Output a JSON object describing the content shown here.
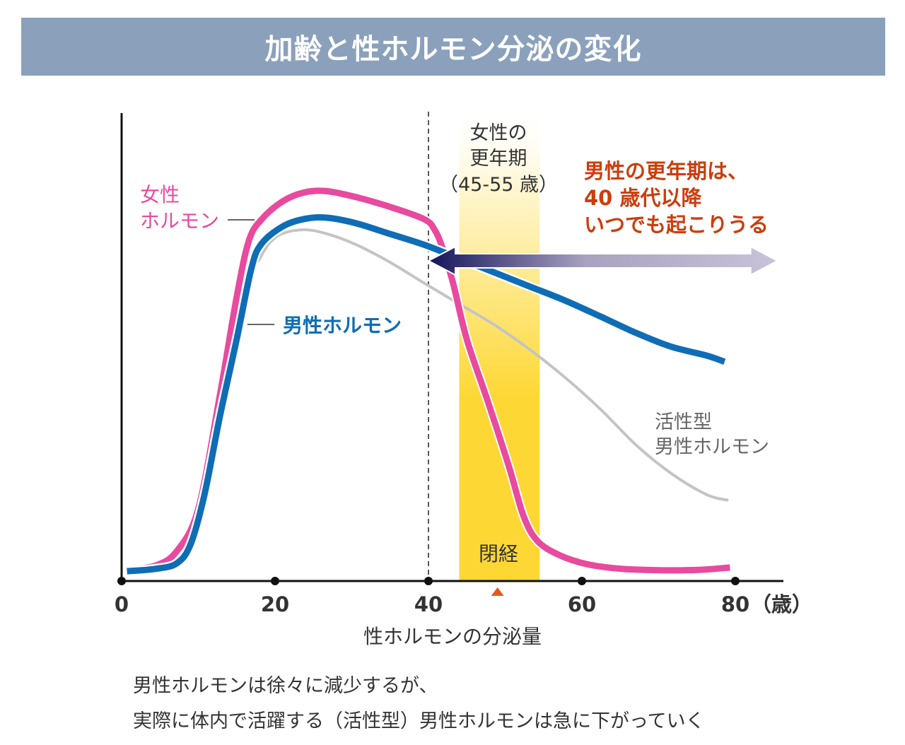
{
  "title": "加齢と性ホルモン分泌の変化",
  "chart_data": {
    "type": "line",
    "title": "加齢と性ホルモン分泌の変化",
    "xlabel": "性ホルモンの分泌量",
    "x_unit": "（歳）",
    "xlim": [
      0,
      85
    ],
    "ylim": [
      0,
      100
    ],
    "x_ticks": [
      "0",
      "20",
      "40",
      "60",
      "80"
    ],
    "x_tick_values": [
      0,
      20,
      40,
      60,
      80
    ],
    "grid": false,
    "series": [
      {
        "name": "女性ホルモン",
        "color": "#e84a9e",
        "points": [
          [
            0.7,
            2.4
          ],
          [
            4.4,
            3.3
          ],
          [
            7.2,
            6.4
          ],
          [
            10,
            15.5
          ],
          [
            12.8,
            39.7
          ],
          [
            15,
            60.9
          ],
          [
            16.6,
            73
          ],
          [
            18.3,
            77.6
          ],
          [
            21,
            81.4
          ],
          [
            23.8,
            83.3
          ],
          [
            26.6,
            83.6
          ],
          [
            30.3,
            82.4
          ],
          [
            34.8,
            80.3
          ],
          [
            39.4,
            77.6
          ],
          [
            40.8,
            75.3
          ],
          [
            41.8,
            71.5
          ],
          [
            43.2,
            63.9
          ],
          [
            45,
            51.8
          ],
          [
            47.8,
            38.2
          ],
          [
            50.5,
            24.5
          ],
          [
            52.4,
            13.9
          ],
          [
            54.2,
            8.6
          ],
          [
            57,
            5.6
          ],
          [
            60.7,
            3.6
          ],
          [
            65.3,
            2.6
          ],
          [
            70.8,
            2.3
          ],
          [
            75.4,
            2.4
          ],
          [
            79.3,
            2.9
          ]
        ]
      },
      {
        "name": "男性ホルモン",
        "color": "#0f6db5",
        "points": [
          [
            0.7,
            2.1
          ],
          [
            4.4,
            2.6
          ],
          [
            7.2,
            3.8
          ],
          [
            9,
            7.9
          ],
          [
            10.8,
            18.5
          ],
          [
            12.8,
            35.2
          ],
          [
            15,
            51.8
          ],
          [
            16.9,
            66.9
          ],
          [
            18.2,
            72.2
          ],
          [
            21,
            76
          ],
          [
            23.8,
            77.6
          ],
          [
            26.6,
            77.9
          ],
          [
            30.3,
            76.8
          ],
          [
            34.8,
            74.5
          ],
          [
            39.4,
            72.1
          ],
          [
            43.9,
            69.2
          ],
          [
            48.5,
            66.2
          ],
          [
            53.1,
            63.2
          ],
          [
            57.7,
            60.2
          ],
          [
            62.3,
            56.8
          ],
          [
            66.9,
            53.3
          ],
          [
            71.5,
            50.3
          ],
          [
            76.3,
            48.3
          ],
          [
            78.6,
            47
          ]
        ]
      },
      {
        "name": "活性型男性ホルモン",
        "color": "#c4c4c4",
        "points": [
          [
            17.8,
            68.5
          ],
          [
            19.2,
            72.3
          ],
          [
            21,
            74.5
          ],
          [
            23.8,
            75.3
          ],
          [
            26.6,
            74.5
          ],
          [
            30.3,
            72.3
          ],
          [
            34.8,
            68.5
          ],
          [
            39.4,
            63.9
          ],
          [
            44,
            59.4
          ],
          [
            48.7,
            54.8
          ],
          [
            53.3,
            49.5
          ],
          [
            57.9,
            43.5
          ],
          [
            62.5,
            36.7
          ],
          [
            67.1,
            29.1
          ],
          [
            71.7,
            23
          ],
          [
            76.3,
            18.5
          ],
          [
            79.1,
            17.3
          ]
        ]
      }
    ],
    "annotations": {
      "female_label_line1": "女性",
      "female_label_line2": "ホルモン",
      "male_label": "男性ホルモン",
      "active_label_line1": "活性型",
      "active_label_line2": "男性ホルモン",
      "menopause_band": {
        "range": [
          44,
          54.5
        ],
        "line1": "女性の",
        "line2": "更年期",
        "line3": "（45-55 歳）",
        "bottom_label": "閉経",
        "color_top": "#fff8e0",
        "color_bottom": "#fdd835"
      },
      "menopause_marker_age": 49,
      "marker_color": "#e8581e",
      "dashed_line_age": 40,
      "male_menopause_arrow": {
        "from": 40,
        "to": 85.5,
        "color_start": "#14145a",
        "color_end": "#c8c3d8"
      },
      "male_menopause_text": [
        "男性の更年期は、",
        "40 歳代以降",
        "いつでも起こりうる"
      ],
      "male_menopause_text_color": "#cc3d0c"
    }
  },
  "caption": {
    "line1": "男性ホルモンは徐々に減少するが、",
    "line2": "実際に体内で活躍する（活性型）男性ホルモンは急に下がっていく"
  }
}
